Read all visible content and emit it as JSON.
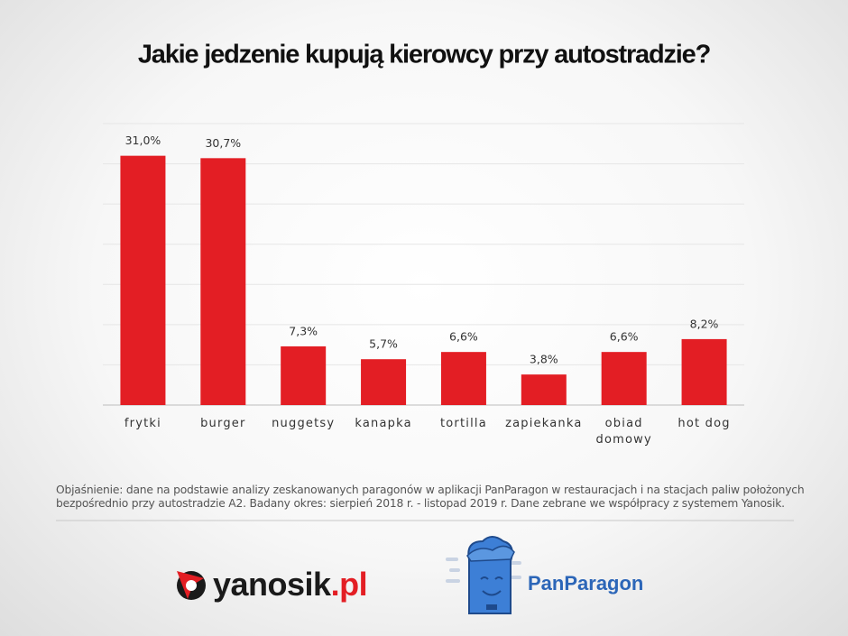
{
  "chart_data": {
    "type": "bar",
    "title": "Jakie jedzenie kupują kierowcy przy autostradzie?",
    "categories": [
      "frytki",
      "burger",
      "nuggetsy",
      "kanapka",
      "tortilla",
      "zapiekanka",
      "obiad domowy",
      "hot dog"
    ],
    "values": [
      31.0,
      30.7,
      7.3,
      5.7,
      6.6,
      3.8,
      6.6,
      8.2
    ],
    "value_labels": [
      "31,0%",
      "30,7%",
      "7,3%",
      "5,7%",
      "6,6%",
      "3,8%",
      "6,6%",
      "8,2%"
    ],
    "color": "#e31e24",
    "ylim": [
      0,
      35
    ],
    "yticks": [
      0,
      5,
      10,
      15,
      20,
      25,
      30,
      35
    ],
    "grid": true
  },
  "footnote": "Objaśnienie: dane na podstawie analizy zeskanowanych paragonów w aplikacji PanParagon w restauracjach i na stacjach paliw położonych bezpośrednio przy autostradzie A2. Badany okres: sierpień 2018 r. - listopad 2019 r. Dane zebrane we współpracy z systemem Yanosik.",
  "logos": {
    "yanosik": "yanosik",
    "yanosik_suffix": ".pl",
    "panparagon": "PanParagon"
  }
}
